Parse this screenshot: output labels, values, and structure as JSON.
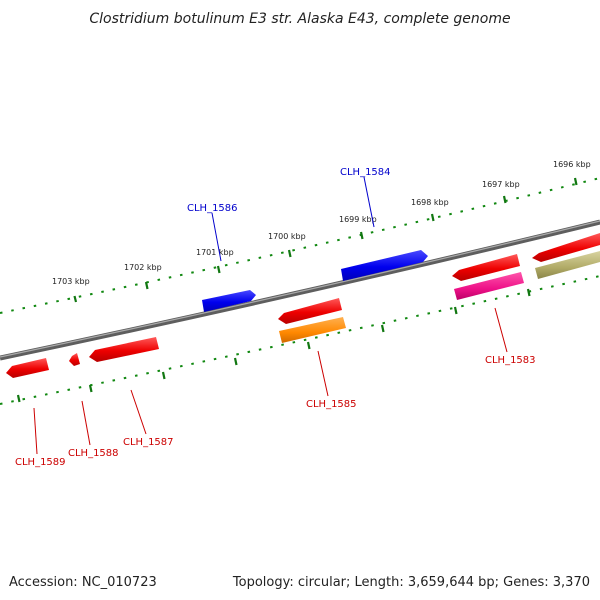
{
  "title": "Clostridium botulinum E3 str. Alaska E43, complete genome",
  "footer": {
    "accession": "Accession: NC_010723",
    "summary": "Topology: circular; Length: 3,659,644 bp; Genes: 3,370"
  },
  "ruler_labels": [
    {
      "text": "1703 kbp"
    },
    {
      "text": "1702 kbp"
    },
    {
      "text": "1701 kbp"
    },
    {
      "text": "1700 kbp"
    },
    {
      "text": "1699 kbp"
    },
    {
      "text": "1698 kbp"
    },
    {
      "text": "1697 kbp"
    },
    {
      "text": "1696 kbp"
    }
  ],
  "gene_labels": [
    {
      "id": "CLH_1586",
      "strand": "forward"
    },
    {
      "id": "CLH_1584",
      "strand": "forward"
    },
    {
      "id": "CLH_1583",
      "strand": "reverse"
    },
    {
      "id": "CLH_1585",
      "strand": "reverse"
    },
    {
      "id": "CLH_1587",
      "strand": "reverse"
    },
    {
      "id": "CLH_1588",
      "strand": "reverse"
    },
    {
      "id": "CLH_1589",
      "strand": "reverse"
    }
  ],
  "colors": {
    "forward_label": "#0000cc",
    "reverse_label": "#cc0000",
    "gene_blue": "#0000ee",
    "gene_red": "#ee0000",
    "gene_orange": "#ff8800",
    "gene_magenta": "#ee1188",
    "gene_olive": "#b0aa66",
    "backbone": "#777777",
    "ticks": "#118811"
  }
}
